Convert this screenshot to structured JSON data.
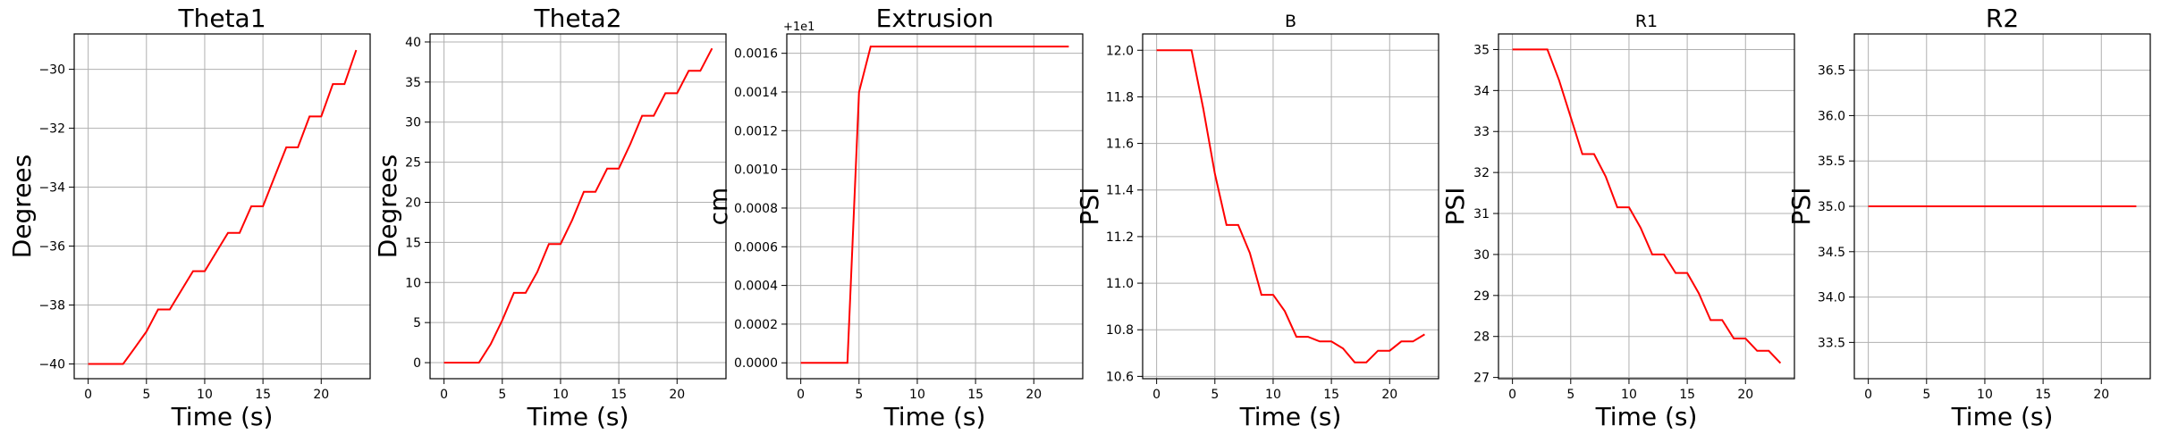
{
  "chart_data": [
    {
      "type": "line",
      "title": "Theta1",
      "xlabel": "Time (s)",
      "ylabel": "Degrees",
      "xlim": [
        -1.2,
        24.2
      ],
      "ylim": [
        -40.5,
        -28.8
      ],
      "xticks": [
        0,
        5,
        10,
        15,
        20
      ],
      "yticks": [
        -40,
        -38,
        -36,
        -34,
        -32,
        -30
      ],
      "yticklabels": [
        "−40",
        "−38",
        "−36",
        "−34",
        "−32",
        "−30"
      ],
      "grid": true,
      "series": [
        {
          "color": "#ff0000",
          "x": [
            0,
            1,
            2,
            3,
            4,
            5,
            6,
            7,
            8,
            9,
            10,
            11,
            12,
            13,
            14,
            15,
            16,
            17,
            18,
            19,
            20,
            21,
            22,
            23
          ],
          "y": [
            -40,
            -40,
            -40,
            -40,
            -39.45,
            -38.9,
            -38.15,
            -38.15,
            -37.5,
            -36.85,
            -36.85,
            -36.2,
            -35.55,
            -35.55,
            -34.65,
            -34.65,
            -33.65,
            -32.65,
            -32.65,
            -31.6,
            -31.6,
            -30.5,
            -30.5,
            -29.35
          ]
        }
      ]
    },
    {
      "type": "line",
      "title": "Theta2",
      "xlabel": "Time (s)",
      "ylabel": "Degrees",
      "xlim": [
        -1.2,
        24.2
      ],
      "ylim": [
        -2,
        41
      ],
      "xticks": [
        0,
        5,
        10,
        15,
        20
      ],
      "yticks": [
        0,
        5,
        10,
        15,
        20,
        25,
        30,
        35,
        40
      ],
      "yticklabels": [
        "0",
        "5",
        "10",
        "15",
        "20",
        "25",
        "30",
        "35",
        "40"
      ],
      "grid": true,
      "series": [
        {
          "color": "#ff0000",
          "x": [
            0,
            1,
            2,
            3,
            4,
            5,
            6,
            7,
            8,
            9,
            10,
            11,
            12,
            13,
            14,
            15,
            16,
            17,
            18,
            19,
            20,
            21,
            22,
            23
          ],
          "y": [
            0,
            0,
            0,
            0,
            2.3,
            5.3,
            8.7,
            8.7,
            11.3,
            14.8,
            14.8,
            17.8,
            21.3,
            21.3,
            24.2,
            24.2,
            27.3,
            30.8,
            30.8,
            33.6,
            33.6,
            36.4,
            36.4,
            39.2
          ]
        }
      ]
    },
    {
      "type": "line",
      "title": "Extrusion",
      "xlabel": "Time (s)",
      "ylabel": "cm",
      "offset_text": "+1e1",
      "xlim": [
        -1.2,
        24.2
      ],
      "ylim": [
        -8.2e-05,
        0.0017
      ],
      "xticks": [
        0,
        5,
        10,
        15,
        20
      ],
      "yticks": [
        0,
        0.0002,
        0.0004,
        0.0006,
        0.0008,
        0.001,
        0.0012,
        0.0014,
        0.0016
      ],
      "yticklabels": [
        "0.0000",
        "0.0002",
        "0.0004",
        "0.0006",
        "0.0008",
        "0.0010",
        "0.0012",
        "0.0014",
        "0.0016"
      ],
      "grid": true,
      "series": [
        {
          "color": "#ff0000",
          "x": [
            0,
            1,
            2,
            3,
            4,
            5,
            6,
            7,
            8,
            9,
            10,
            11,
            12,
            13,
            14,
            15,
            16,
            17,
            18,
            19,
            20,
            21,
            22,
            23
          ],
          "y": [
            0,
            0,
            0,
            0,
            0,
            0.0014,
            0.001635,
            0.001635,
            0.001635,
            0.001635,
            0.001635,
            0.001635,
            0.001635,
            0.001635,
            0.001635,
            0.001635,
            0.001635,
            0.001635,
            0.001635,
            0.001635,
            0.001635,
            0.001635,
            0.001635,
            0.001635
          ]
        }
      ]
    },
    {
      "type": "line",
      "title": "B",
      "xlabel": "Time (s)",
      "ylabel": "PSI",
      "xlim": [
        -1.2,
        24.2
      ],
      "ylim": [
        10.59,
        12.07
      ],
      "xticks": [
        0,
        5,
        10,
        15,
        20
      ],
      "yticks": [
        10.6,
        10.8,
        11.0,
        11.2,
        11.4,
        11.6,
        11.8,
        12.0
      ],
      "yticklabels": [
        "10.6",
        "10.8",
        "11.0",
        "11.2",
        "11.4",
        "11.6",
        "11.8",
        "12.0"
      ],
      "grid": true,
      "series": [
        {
          "color": "#ff0000",
          "x": [
            0,
            1,
            2,
            3,
            4,
            5,
            6,
            7,
            8,
            9,
            10,
            11,
            12,
            13,
            14,
            15,
            16,
            17,
            18,
            19,
            20,
            21,
            22,
            23
          ],
          "y": [
            12.0,
            12.0,
            12.0,
            12.0,
            11.75,
            11.47,
            11.25,
            11.25,
            11.13,
            10.95,
            10.95,
            10.88,
            10.77,
            10.77,
            10.75,
            10.75,
            10.72,
            10.66,
            10.66,
            10.71,
            10.71,
            10.75,
            10.75,
            10.78
          ]
        }
      ]
    },
    {
      "type": "line",
      "title": "R1",
      "xlabel": "Time (s)",
      "ylabel": "PSI",
      "xlim": [
        -1.2,
        24.2
      ],
      "ylim": [
        26.97,
        35.38
      ],
      "xticks": [
        0,
        5,
        10,
        15,
        20
      ],
      "yticks": [
        27,
        28,
        29,
        30,
        31,
        32,
        33,
        34,
        35
      ],
      "yticklabels": [
        "27",
        "28",
        "29",
        "30",
        "31",
        "32",
        "33",
        "34",
        "35"
      ],
      "grid": true,
      "series": [
        {
          "color": "#ff0000",
          "x": [
            0,
            1,
            2,
            3,
            4,
            5,
            6,
            7,
            8,
            9,
            10,
            11,
            12,
            13,
            14,
            15,
            16,
            17,
            18,
            19,
            20,
            21,
            22,
            23
          ],
          "y": [
            35,
            35,
            35,
            35,
            34.25,
            33.35,
            32.45,
            32.45,
            31.9,
            31.15,
            31.15,
            30.65,
            30.0,
            30.0,
            29.55,
            29.55,
            29.05,
            28.4,
            28.4,
            27.95,
            27.95,
            27.65,
            27.65,
            27.35
          ]
        }
      ]
    },
    {
      "type": "line",
      "title": "R2",
      "xlabel": "Time (s)",
      "ylabel": "PSI",
      "xlim": [
        -1.2,
        24.2
      ],
      "ylim": [
        33.1,
        36.9
      ],
      "xticks": [
        0,
        5,
        10,
        15,
        20
      ],
      "yticks": [
        33.5,
        34.0,
        34.5,
        35.0,
        35.5,
        36.0,
        36.5
      ],
      "yticklabels": [
        "33.5",
        "34.0",
        "34.5",
        "35.0",
        "35.5",
        "36.0",
        "36.5"
      ],
      "grid": true,
      "series": [
        {
          "color": "#ff0000",
          "x": [
            0,
            1,
            2,
            3,
            4,
            5,
            6,
            7,
            8,
            9,
            10,
            11,
            12,
            13,
            14,
            15,
            16,
            17,
            18,
            19,
            20,
            21,
            22,
            23
          ],
          "y": [
            35,
            35,
            35,
            35,
            35,
            35,
            35,
            35,
            35,
            35,
            35,
            35,
            35,
            35,
            35,
            35,
            35,
            35,
            35,
            35,
            35,
            35,
            35,
            35
          ]
        }
      ]
    }
  ]
}
